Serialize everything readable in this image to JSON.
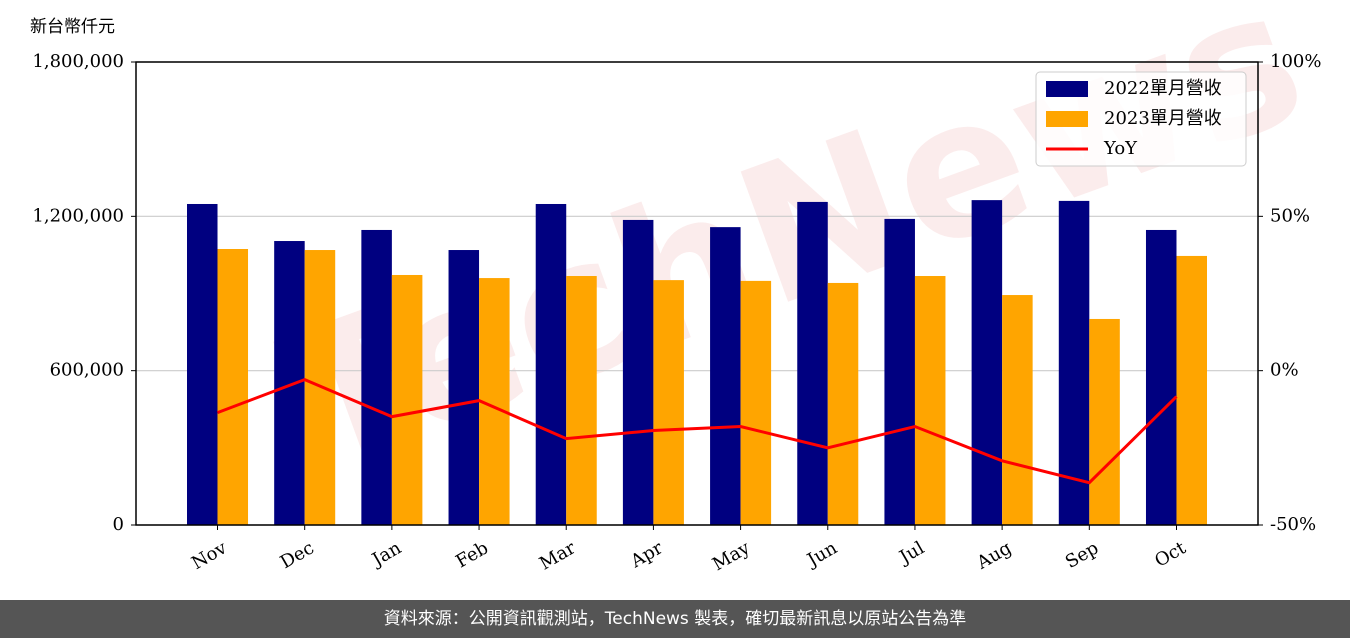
{
  "chart_data": {
    "type": "bar",
    "y_label": "新台幣仟元",
    "watermark": "TechNews",
    "categories": [
      "Nov",
      "Dec",
      "Jan",
      "Feb",
      "Mar",
      "Apr",
      "May",
      "Jun",
      "Jul",
      "Aug",
      "Sep",
      "Oct"
    ],
    "series": [
      {
        "name": "2022單月營收",
        "color": "#000080",
        "values": [
          1248000,
          1104000,
          1147000,
          1069000,
          1248000,
          1186000,
          1158000,
          1256000,
          1190000,
          1263000,
          1260000,
          1147000
        ]
      },
      {
        "name": "2023單月營收",
        "color": "#ffa500",
        "values": [
          1073000,
          1069000,
          972000,
          960000,
          968000,
          952000,
          949000,
          941000,
          968000,
          894000,
          801000,
          1046000
        ]
      },
      {
        "name": "YoY",
        "type": "line",
        "axis": "y2",
        "color": "#ff0000",
        "values": [
          -13.6,
          -2.9,
          -14.9,
          -9.7,
          -22.0,
          -19.4,
          -18.1,
          -25.0,
          -18.1,
          -29.2,
          -36.3,
          -8.4
        ]
      }
    ],
    "ylim": [
      0,
      1800000
    ],
    "yticks": [
      {
        "value": 0,
        "label": "0"
      },
      {
        "value": 600000,
        "label": "600,000"
      },
      {
        "value": 1200000,
        "label": "1,200,000"
      },
      {
        "value": 1800000,
        "label": "1,800,000"
      }
    ],
    "y2lim": [
      -50,
      100
    ],
    "y2ticks": [
      {
        "value": -50,
        "label": "-50%"
      },
      {
        "value": 0,
        "label": "0%"
      },
      {
        "value": 50,
        "label": "50%"
      },
      {
        "value": 100,
        "label": "100%"
      }
    ],
    "grid": true,
    "legend": "upper right"
  },
  "footer": "資料來源：公開資訊觀測站，TechNews 製表，確切最新訊息以原站公告為準"
}
